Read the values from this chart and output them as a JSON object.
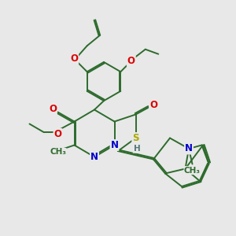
{
  "bg_color": "#e8e8e8",
  "bond_color": "#2d6b2d",
  "heteroatom_colors": {
    "O": "#dd0000",
    "N": "#0000cc",
    "S": "#aaaa00",
    "H": "#557777"
  },
  "line_width": 1.4,
  "font_size": 8.5
}
